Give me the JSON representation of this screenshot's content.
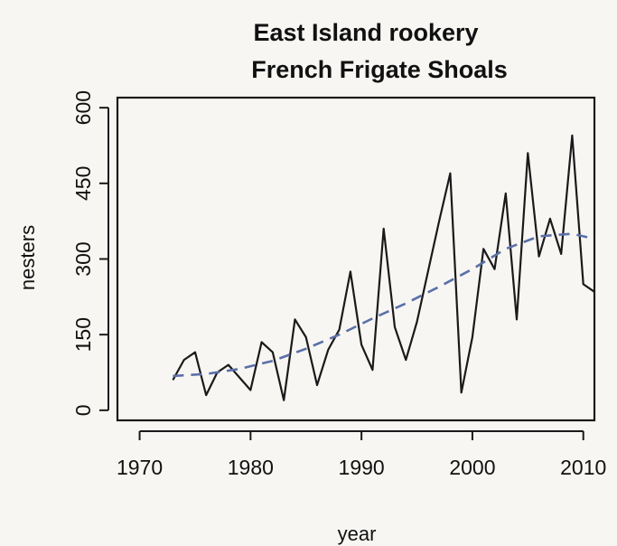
{
  "chart_data": {
    "type": "line",
    "title": "East Island rookery",
    "subtitle": "French Frigate Shoals",
    "xlabel": "year",
    "ylabel": "nesters",
    "xlim": [
      1968,
      2011
    ],
    "ylim": [
      -20,
      620
    ],
    "xticks": [
      1970,
      1980,
      1990,
      2000,
      2010
    ],
    "yticks": [
      0,
      150,
      300,
      450,
      600
    ],
    "grid": false,
    "series": [
      {
        "style": "solid",
        "color": "#1a1a1a",
        "x": [
          1973,
          1974,
          1975,
          1976,
          1977,
          1978,
          1979,
          1980,
          1981,
          1982,
          1983,
          1984,
          1985,
          1986,
          1987,
          1988,
          1989,
          1990,
          1991,
          1992,
          1993,
          1994,
          1995,
          1996,
          1997,
          1998,
          1999,
          2000,
          2001,
          2002,
          2003,
          2004,
          2005,
          2006,
          2007,
          2008,
          2009,
          2010,
          2011
        ],
        "y": [
          60,
          100,
          115,
          30,
          75,
          90,
          65,
          40,
          135,
          115,
          20,
          180,
          145,
          50,
          120,
          160,
          275,
          130,
          80,
          360,
          165,
          100,
          175,
          275,
          375,
          470,
          35,
          145,
          320,
          280,
          430,
          180,
          510,
          305,
          380,
          310,
          545,
          250,
          235
        ]
      },
      {
        "style": "dashed",
        "color": "#5b6fa8",
        "x": [
          1973,
          1976,
          1979,
          1982,
          1985,
          1988,
          1991,
          1994,
          1997,
          2000,
          2003,
          2006,
          2009,
          2011
        ],
        "y": [
          68,
          72,
          82,
          98,
          122,
          150,
          182,
          212,
          245,
          280,
          320,
          345,
          350,
          340
        ]
      }
    ]
  }
}
